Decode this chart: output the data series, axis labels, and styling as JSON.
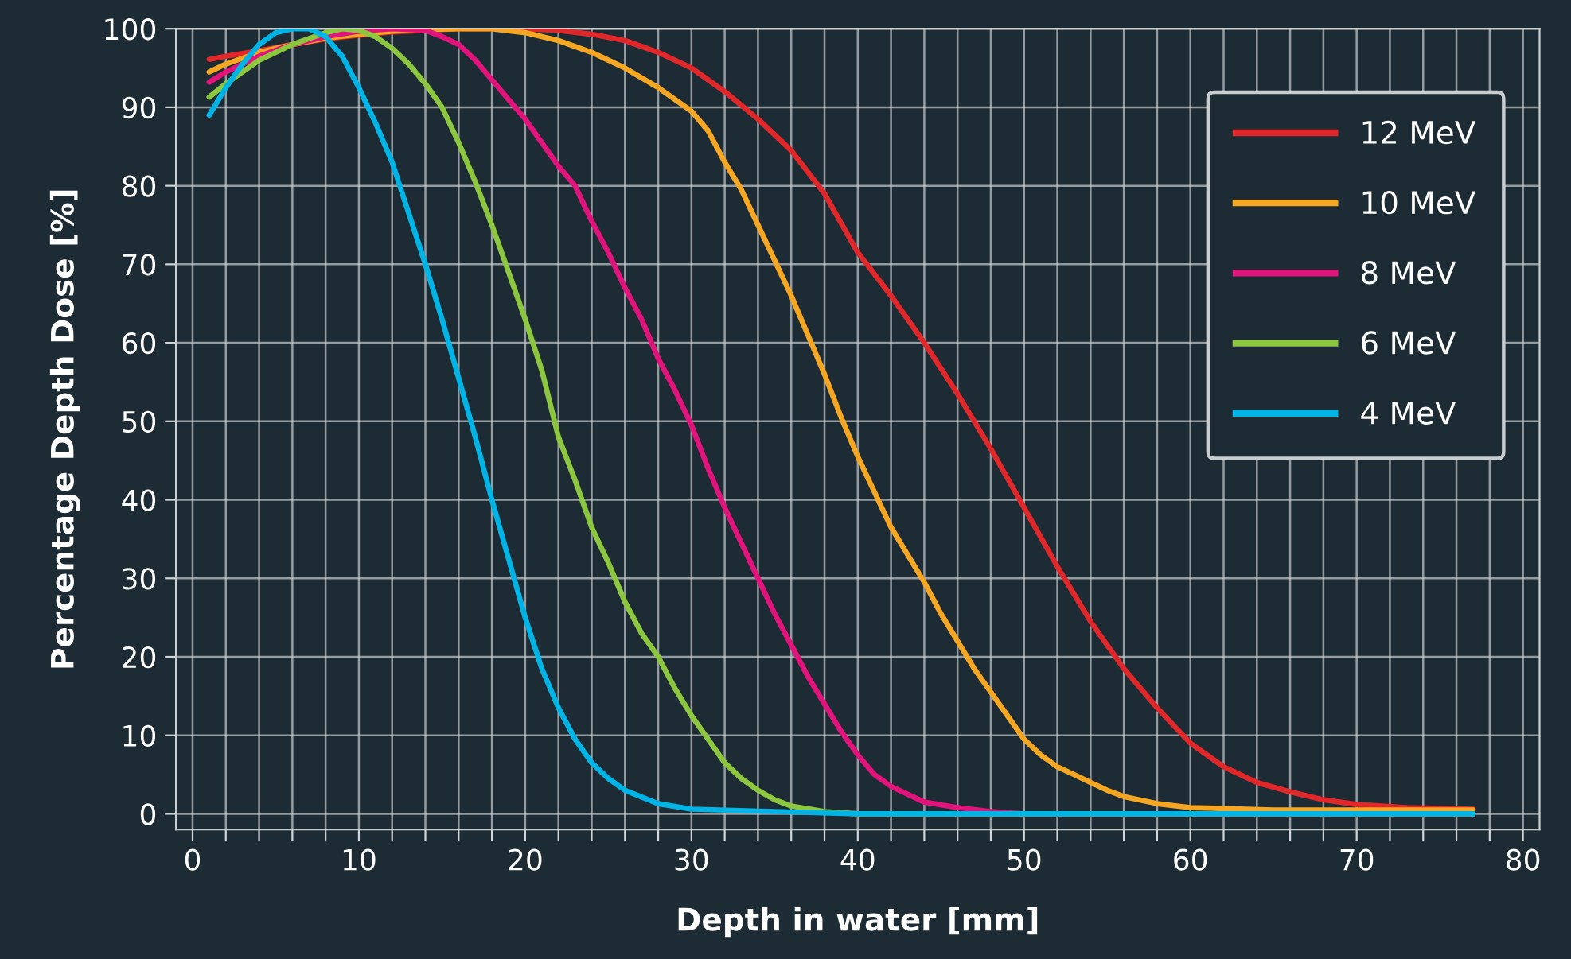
{
  "chart_data": {
    "type": "line",
    "xlabel": "Depth in water [mm]",
    "ylabel": "Percentage Depth Dose [%]",
    "xlim": [
      -1,
      81
    ],
    "ylim": [
      -2,
      100
    ],
    "xticks": [
      0,
      {
        "value": 2,
        "label": null
      },
      {
        "value": 4,
        "label": null
      },
      {
        "value": 6,
        "label": null
      },
      {
        "value": 8,
        "label": null
      },
      10,
      {
        "value": 12,
        "label": null
      },
      {
        "value": 14,
        "label": null
      },
      {
        "value": 16,
        "label": null
      },
      {
        "value": 18,
        "label": null
      },
      20,
      {
        "value": 22,
        "label": null
      },
      {
        "value": 24,
        "label": null
      },
      {
        "value": 26,
        "label": null
      },
      {
        "value": 28,
        "label": null
      },
      30,
      {
        "value": 32,
        "label": null
      },
      {
        "value": 34,
        "label": null
      },
      {
        "value": 36,
        "label": null
      },
      {
        "value": 38,
        "label": null
      },
      40,
      {
        "value": 42,
        "label": null
      },
      {
        "value": 44,
        "label": null
      },
      {
        "value": 46,
        "label": null
      },
      {
        "value": 48,
        "label": null
      },
      50,
      {
        "value": 52,
        "label": null
      },
      {
        "value": 54,
        "label": null
      },
      {
        "value": 56,
        "label": null
      },
      {
        "value": 58,
        "label": null
      },
      60,
      {
        "value": 62,
        "label": null
      },
      {
        "value": 64,
        "label": null
      },
      {
        "value": 66,
        "label": null
      },
      {
        "value": 68,
        "label": null
      },
      70,
      {
        "value": 72,
        "label": null
      },
      {
        "value": 74,
        "label": null
      },
      {
        "value": 76,
        "label": null
      },
      {
        "value": 78,
        "label": null
      },
      80
    ],
    "yticks": [
      0,
      10,
      20,
      30,
      40,
      50,
      60,
      70,
      80,
      90,
      100
    ],
    "grid": true,
    "legend": "top right",
    "line_style": "solid",
    "series": [
      {
        "name": "12 MeV",
        "color": "#e0282a",
        "x": [
          1,
          2,
          4,
          6,
          8,
          10,
          12,
          14,
          16,
          18,
          20,
          22,
          24,
          26,
          28,
          30,
          32,
          34,
          36,
          38,
          40,
          42,
          44,
          46,
          48,
          50,
          52,
          54,
          56,
          58,
          60,
          62,
          64,
          66,
          68,
          70,
          73,
          77
        ],
        "values": [
          96.1,
          96.5,
          97.2,
          98,
          98.7,
          99.2,
          99.6,
          99.8,
          100,
          100,
          100,
          99.8,
          99.3,
          98.5,
          97,
          95,
          92,
          88.5,
          84.5,
          79,
          71.5,
          66,
          60,
          53.5,
          46.5,
          39,
          31.5,
          24.5,
          18.5,
          13.5,
          9,
          6,
          4,
          2.8,
          1.8,
          1.2,
          0.8,
          0.6
        ]
      },
      {
        "name": "10 MeV",
        "color": "#f5a623",
        "x": [
          1,
          2,
          4,
          6,
          8,
          10,
          12,
          14,
          16,
          18,
          20,
          22,
          24,
          26,
          28,
          30,
          31,
          32,
          33,
          34,
          35,
          36,
          37,
          38,
          39,
          40,
          41,
          42,
          43,
          44,
          45,
          46,
          47,
          48,
          49,
          50,
          51,
          52,
          53,
          54,
          55,
          56,
          58,
          60,
          65,
          77
        ],
        "values": [
          94.5,
          95.5,
          97,
          98,
          98.8,
          99.3,
          99.7,
          99.9,
          100,
          100,
          99.5,
          98.5,
          97,
          95,
          92.5,
          89.5,
          87,
          83,
          79.5,
          75,
          70.5,
          66,
          61,
          56,
          50.5,
          45.5,
          41,
          36.5,
          33,
          29.5,
          25.5,
          22,
          18.5,
          15.5,
          12.5,
          9.5,
          7.5,
          6,
          5,
          4,
          3,
          2.2,
          1.3,
          0.8,
          0.5,
          0.5
        ]
      },
      {
        "name": "8 MeV",
        "color": "#e0147a",
        "x": [
          1,
          2,
          4,
          6,
          8,
          10,
          12,
          14,
          15,
          16,
          17,
          18,
          19,
          20,
          21,
          22,
          23,
          24,
          25,
          26,
          27,
          28,
          29,
          30,
          31,
          32,
          33,
          34,
          35,
          36,
          37,
          38,
          39,
          40,
          41,
          42,
          43,
          44,
          46,
          48,
          50,
          77
        ],
        "values": [
          93.2,
          94.5,
          96.5,
          98,
          99,
          99.7,
          100,
          99.8,
          99,
          98,
          96,
          93.5,
          91,
          88.5,
          85.5,
          82.5,
          80,
          75.5,
          71.5,
          67,
          63,
          58,
          54,
          49.5,
          44,
          39,
          34.5,
          30,
          25.5,
          21.5,
          17.5,
          14,
          10.5,
          7.5,
          5,
          3.5,
          2.5,
          1.5,
          0.8,
          0.3,
          0,
          0
        ]
      },
      {
        "name": "6 MeV",
        "color": "#8dc63f",
        "x": [
          1,
          2,
          4,
          6,
          8,
          9,
          10,
          11,
          12,
          13,
          14,
          15,
          16,
          17,
          18,
          19,
          20,
          21,
          22,
          23,
          24,
          25,
          26,
          27,
          28,
          29,
          30,
          31,
          32,
          33,
          34,
          35,
          36,
          38,
          40,
          77
        ],
        "values": [
          91.3,
          93,
          96,
          98,
          99.5,
          100,
          99.8,
          99,
          97.5,
          95.5,
          93,
          90,
          85.5,
          80.5,
          75,
          69,
          63,
          56.5,
          48,
          42.5,
          36.5,
          32,
          27,
          23,
          20,
          16,
          12.5,
          9.5,
          6.5,
          4.5,
          3,
          1.8,
          1,
          0.3,
          0,
          0
        ]
      },
      {
        "name": "4 MeV",
        "color": "#00b4e6",
        "x": [
          1,
          2,
          3,
          4,
          5,
          6,
          7,
          8,
          9,
          10,
          11,
          12,
          13,
          14,
          15,
          16,
          17,
          18,
          19,
          20,
          21,
          22,
          23,
          24,
          25,
          26,
          28,
          30,
          35,
          40,
          77
        ],
        "values": [
          89,
          92.5,
          95.5,
          98,
          99.5,
          100,
          100,
          99,
          96.5,
          92.5,
          88,
          83,
          76.5,
          70,
          63,
          55.5,
          48,
          40,
          32.5,
          25,
          18.5,
          13.5,
          9.5,
          6.5,
          4.5,
          3,
          1.3,
          0.6,
          0.3,
          0,
          0
        ]
      }
    ]
  }
}
